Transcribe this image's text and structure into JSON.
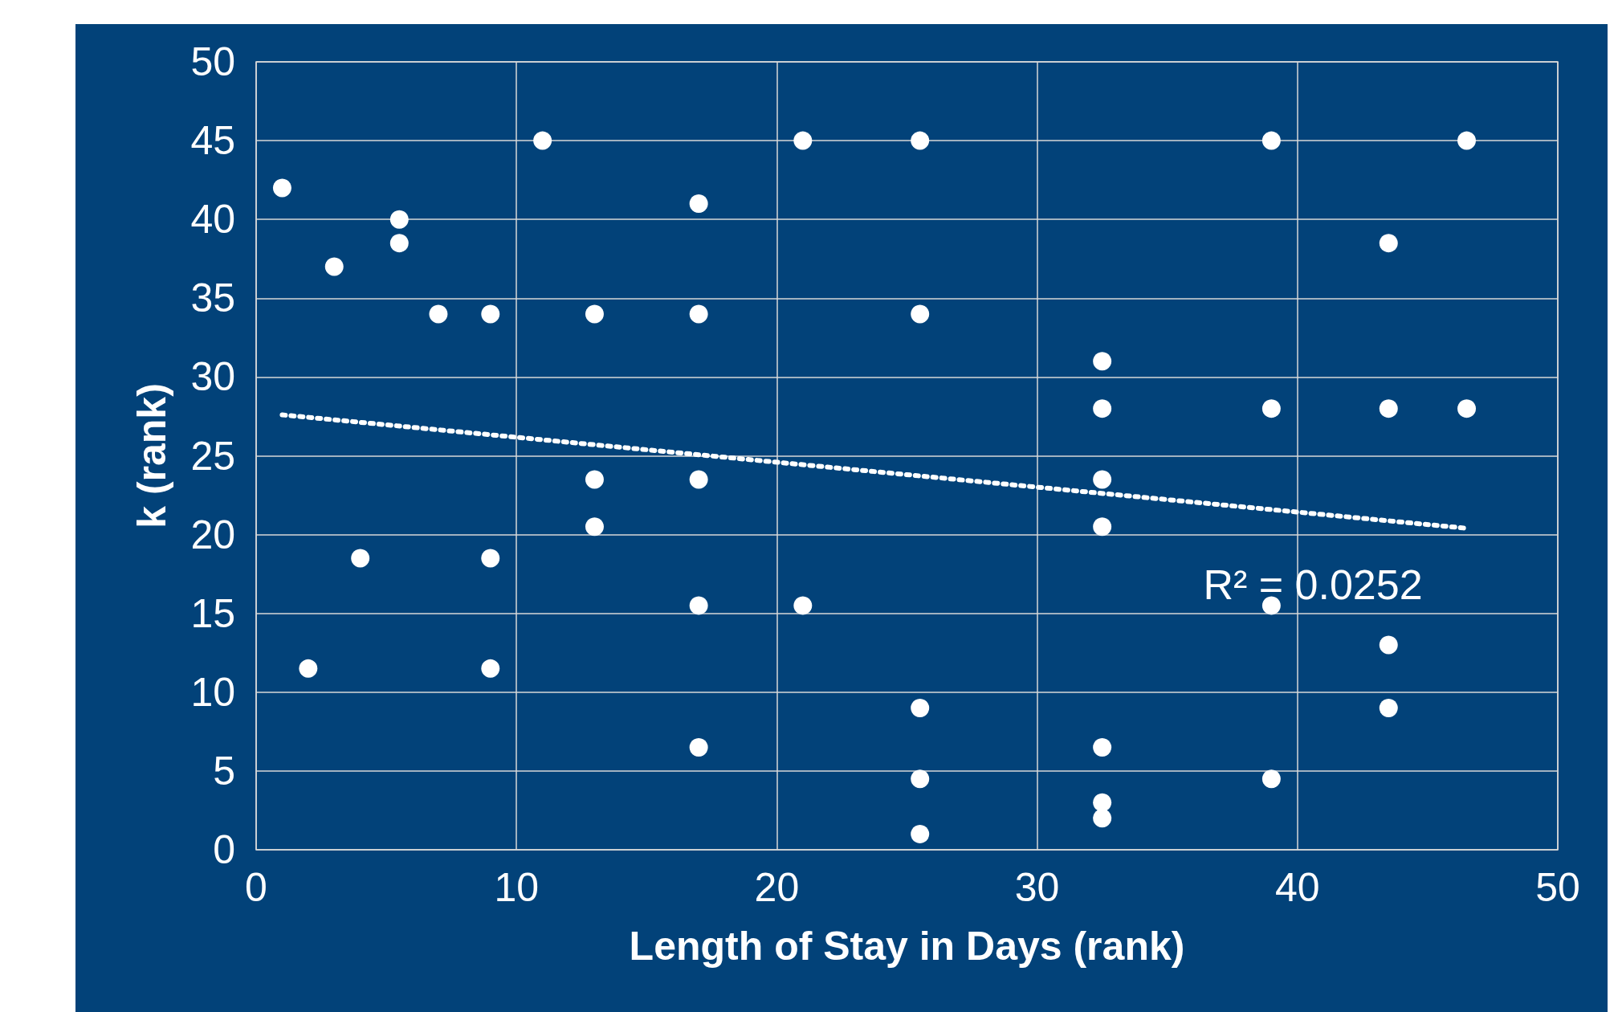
{
  "chart_data": {
    "type": "scatter",
    "xlabel": "Length of Stay in Days (rank)",
    "ylabel": "k (rank)",
    "xlim": [
      0,
      50
    ],
    "xticks": [
      0,
      10,
      20,
      30,
      40,
      50
    ],
    "ylim": [
      0,
      50
    ],
    "yticks": [
      0,
      5,
      10,
      15,
      20,
      25,
      30,
      35,
      40,
      45,
      50
    ],
    "grid": true,
    "marker": "circle",
    "series": [
      {
        "color": "#ffffff",
        "x": [
          1,
          2,
          3,
          4,
          5.5,
          5.5,
          7,
          9,
          9,
          9,
          11,
          13,
          13,
          13,
          17,
          17,
          17,
          17,
          17,
          21,
          21,
          25.5,
          25.5,
          25.5,
          25.5,
          25.5,
          32.5,
          32.5,
          32.5,
          32.5,
          32.5,
          32.5,
          32.5,
          39,
          39,
          39,
          39,
          43.5,
          43.5,
          43.5,
          43.5,
          46.5,
          46.5
        ],
        "values": [
          42,
          11.5,
          37,
          18.5,
          40,
          38.5,
          34,
          34,
          18.5,
          11.5,
          45,
          34,
          23.5,
          20.5,
          41,
          34,
          23.5,
          15.5,
          6.5,
          45,
          15.5,
          45,
          34,
          9,
          4.5,
          1,
          31,
          28,
          23.5,
          20.5,
          6.5,
          3,
          2,
          45,
          28,
          15.5,
          4.5,
          38.5,
          28,
          13,
          9,
          45,
          28
        ]
      },
      {
        "type": "line",
        "color": "#ffffff",
        "line_style": "dotted",
        "marker": "none",
        "x": [
          1,
          46.5
        ],
        "values": [
          27.6,
          20.4
        ]
      }
    ],
    "annotations": [
      "R² = 0.0252"
    ]
  }
}
